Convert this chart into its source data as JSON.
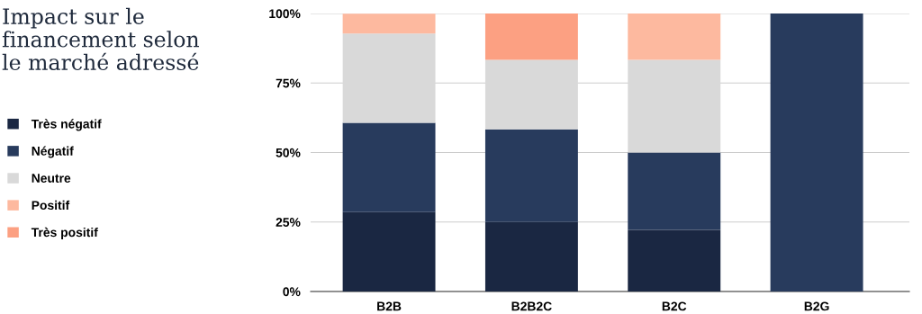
{
  "chart_data": {
    "type": "bar",
    "stacked": true,
    "title": "Impact sur le\nfinancement selon\nle marché adressé",
    "categories": [
      "B2B",
      "B2B2C",
      "B2C",
      "B2G"
    ],
    "series": [
      {
        "name": "Très négatif",
        "color": "#1a2742",
        "values": [
          28.6,
          25,
          22.2,
          0
        ]
      },
      {
        "name": "Négatif",
        "color": "#283b5d",
        "values": [
          32.1,
          33.3,
          27.8,
          100
        ]
      },
      {
        "name": "Neutre",
        "color": "#d9d9d9",
        "values": [
          32.1,
          25,
          33.3,
          0
        ]
      },
      {
        "name": "Positif",
        "color": "#fdb99f",
        "values": [
          7.1,
          0,
          16.7,
          0
        ]
      },
      {
        "name": "Très positif",
        "color": "#fca082",
        "values": [
          0,
          16.7,
          0,
          0
        ]
      }
    ],
    "ylim": [
      0,
      100
    ],
    "yticks": [
      {
        "value": 0,
        "label": "0%"
      },
      {
        "value": 25,
        "label": "25%"
      },
      {
        "value": 50,
        "label": "50%"
      },
      {
        "value": 75,
        "label": "75%"
      },
      {
        "value": 100,
        "label": "100%"
      }
    ],
    "grid": "y",
    "legend": "left"
  }
}
